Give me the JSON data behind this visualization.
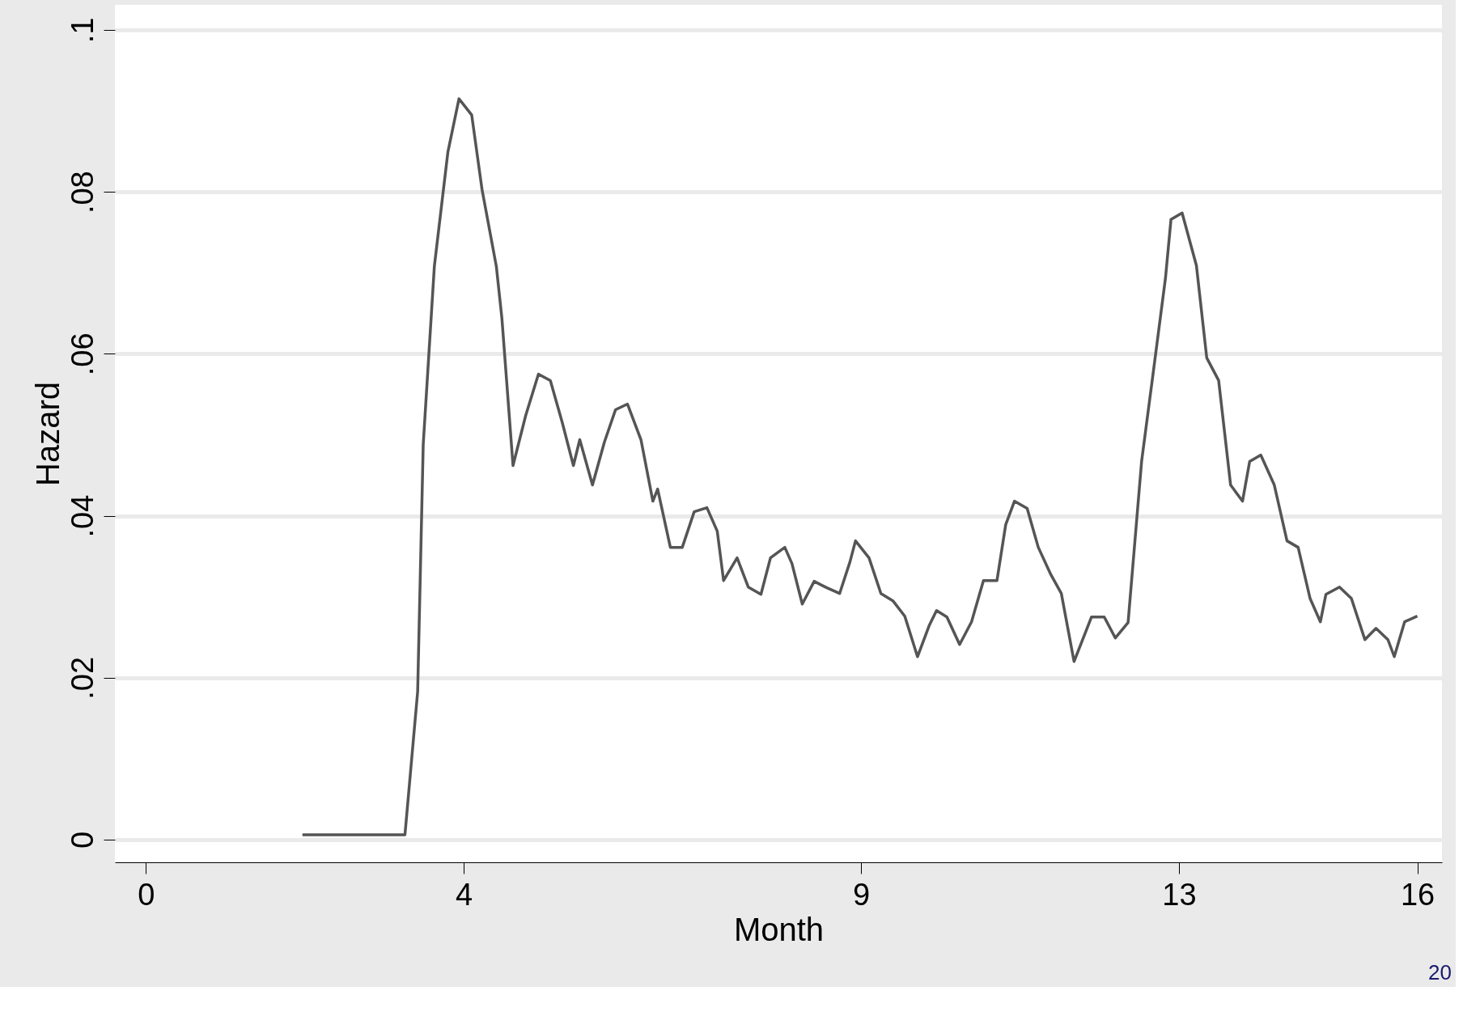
{
  "chart_data": {
    "type": "line",
    "xlabel": "Month",
    "ylabel": "Hazard",
    "x": [
      1.97,
      3.26,
      3.42,
      3.49,
      3.63,
      3.8,
      3.94,
      4.1,
      4.23,
      4.41,
      4.48,
      4.62,
      4.78,
      4.94,
      5.09,
      5.24,
      5.38,
      5.46,
      5.62,
      5.77,
      5.91,
      6.06,
      6.23,
      6.38,
      6.44,
      6.6,
      6.75,
      6.9,
      7.06,
      7.19,
      7.27,
      7.44,
      7.58,
      7.74,
      7.86,
      8.04,
      8.13,
      8.26,
      8.41,
      8.57,
      8.73,
      8.86,
      8.93,
      9.1,
      9.25,
      9.4,
      9.55,
      9.71,
      9.86,
      9.95,
      10.08,
      10.24,
      10.39,
      10.54,
      10.71,
      10.82,
      10.93,
      11.09,
      11.23,
      11.39,
      11.52,
      11.68,
      11.9,
      12.06,
      12.2,
      12.36,
      12.53,
      12.67,
      12.83,
      12.9,
      13.04,
      13.22,
      13.35,
      13.5,
      13.65,
      13.8,
      13.89,
      14.03,
      14.2,
      14.36,
      14.5,
      14.65,
      14.78,
      14.85,
      15.02,
      15.17,
      15.34,
      15.48,
      15.63,
      15.71,
      15.84,
      16.0
    ],
    "series": [
      {
        "color": "#555555",
        "values": [
          0.0006,
          0.0006,
          0.0183,
          0.0488,
          0.0708,
          0.0849,
          0.0915,
          0.0895,
          0.0803,
          0.0708,
          0.0644,
          0.0462,
          0.0524,
          0.0575,
          0.0567,
          0.0515,
          0.0462,
          0.0494,
          0.0438,
          0.0491,
          0.0531,
          0.0538,
          0.0494,
          0.0418,
          0.0433,
          0.0361,
          0.0361,
          0.0405,
          0.041,
          0.0381,
          0.032,
          0.0348,
          0.0312,
          0.0303,
          0.0348,
          0.0361,
          0.0341,
          0.0291,
          0.0319,
          0.0311,
          0.0304,
          0.0343,
          0.0369,
          0.0348,
          0.0304,
          0.0295,
          0.0276,
          0.0226,
          0.0265,
          0.0283,
          0.0275,
          0.0241,
          0.0269,
          0.032,
          0.032,
          0.0389,
          0.0418,
          0.0409,
          0.0361,
          0.0327,
          0.0304,
          0.022,
          0.0275,
          0.0275,
          0.0249,
          0.0268,
          0.0467,
          0.0572,
          0.0693,
          0.0766,
          0.0774,
          0.0709,
          0.0595,
          0.0567,
          0.0438,
          0.0418,
          0.0467,
          0.0475,
          0.0438,
          0.0369,
          0.0361,
          0.0298,
          0.0269,
          0.0303,
          0.0312,
          0.0298,
          0.0247,
          0.0261,
          0.0247,
          0.0226,
          0.0269,
          0.0276
        ]
      }
    ],
    "xlim": [
      -0.39,
      16.31
    ],
    "xticks": [
      0,
      4,
      9,
      13,
      16
    ],
    "ylim": [
      -0.0028,
      0.1031
    ],
    "yticks": [
      {
        "value": 0,
        "label": "0"
      },
      {
        "value": 0.02,
        "label": ".02"
      },
      {
        "value": 0.04,
        "label": ".04"
      },
      {
        "value": 0.06,
        "label": ".06"
      },
      {
        "value": 0.08,
        "label": ".08"
      },
      {
        "value": 0.1,
        "label": ".1"
      }
    ],
    "grid": "y",
    "marker": "none",
    "line_style": "solid",
    "annotations": [
      "20"
    ]
  }
}
